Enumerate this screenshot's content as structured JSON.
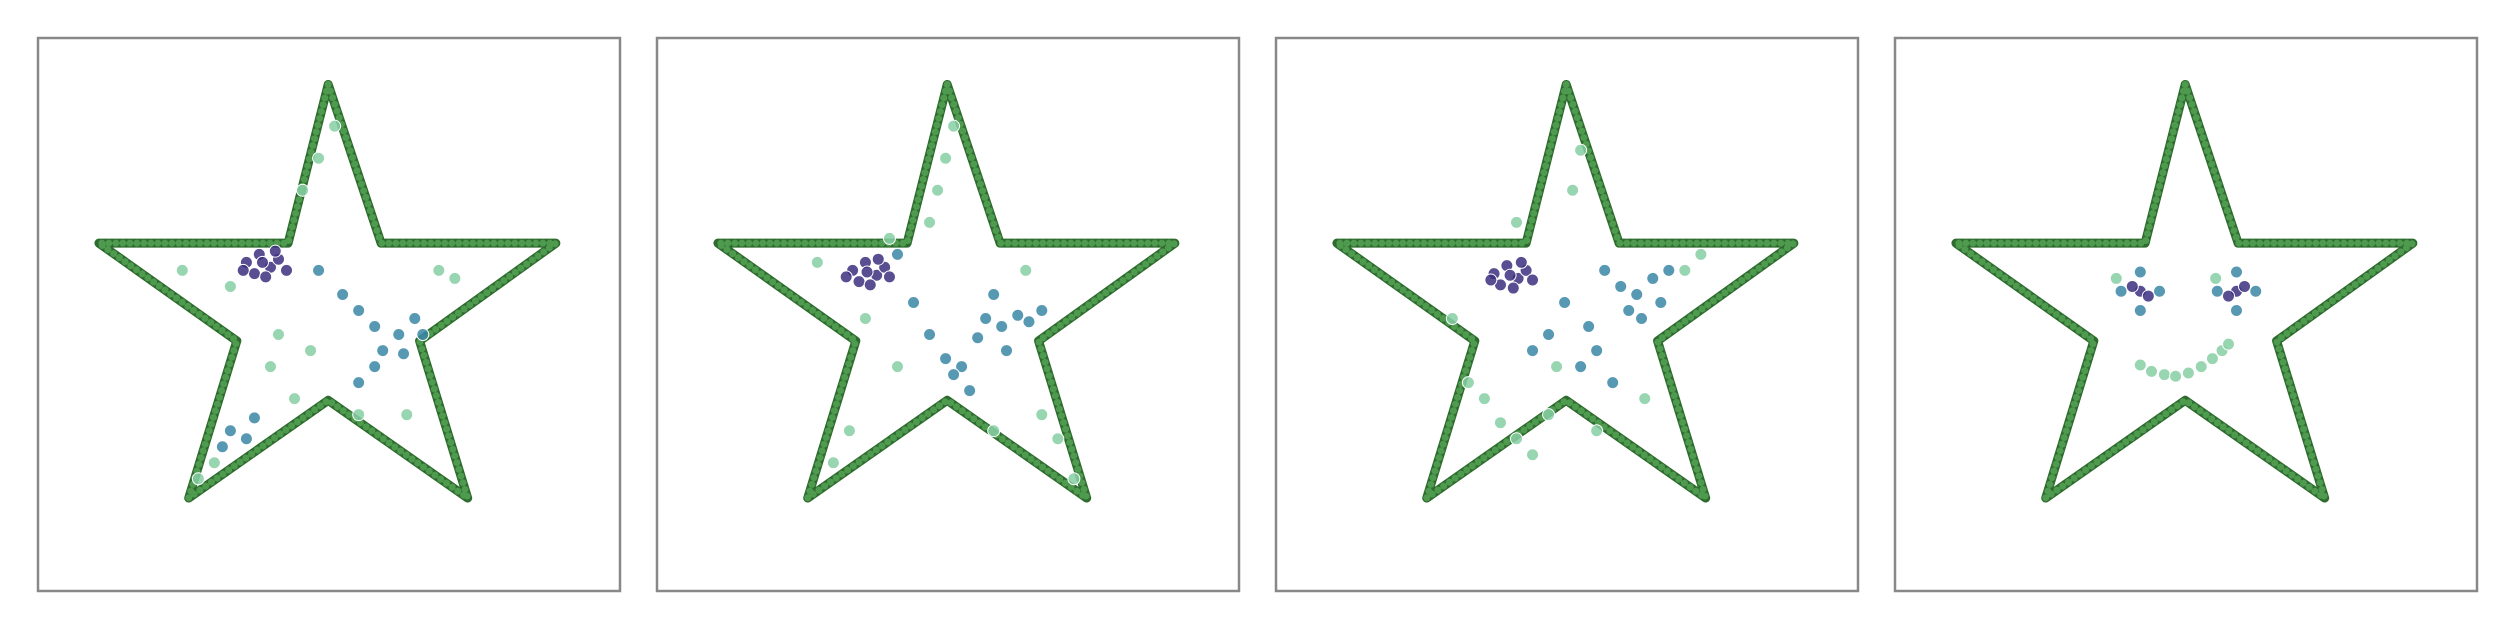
{
  "chart_data": [
    {
      "type": "scatter",
      "xlim": [
        0,
        363
      ],
      "ylim": [
        0,
        345
      ],
      "outline": {
        "color": "#4e9a4e",
        "x": [
          181,
          214,
          323,
          238,
          268,
          181,
          94,
          124,
          38,
          156
        ],
        "values": [
          316,
          217,
          217,
          156,
          58,
          119,
          58,
          156,
          217,
          217
        ]
      },
      "series": [
        {
          "color": "#3b2f7e",
          "x": [
            130,
            138,
            145,
            150,
            135,
            142,
            155,
            128,
            148,
            140
          ],
          "values": [
            205,
            210,
            202,
            207,
            198,
            196,
            200,
            200,
            212,
            205
          ]
        },
        {
          "color": "#3a86a6",
          "x": [
            210,
            225,
            235,
            215,
            200,
            240,
            228,
            190,
            175,
            120,
            130,
            115,
            135,
            200,
            210
          ],
          "values": [
            165,
            160,
            170,
            150,
            175,
            160,
            148,
            185,
            200,
            100,
            95,
            90,
            108,
            130,
            140
          ]
        },
        {
          "color": "#86cfa5",
          "x": [
            110,
            100,
            165,
            175,
            185,
            120,
            150,
            170,
            250,
            260,
            200,
            160,
            145,
            230,
            90
          ],
          "values": [
            80,
            70,
            250,
            270,
            290,
            190,
            160,
            150,
            200,
            195,
            110,
            120,
            140,
            110,
            200
          ]
        }
      ]
    },
    {
      "type": "scatter",
      "xlim": [
        0,
        363
      ],
      "ylim": [
        0,
        345
      ],
      "outline": {
        "color": "#4e9a4e",
        "x": [
          181,
          214,
          323,
          238,
          268,
          181,
          94,
          124,
          38,
          156
        ],
        "values": [
          316,
          217,
          217,
          156,
          58,
          119,
          58,
          156,
          217,
          217
        ]
      },
      "series": [
        {
          "color": "#3b2f7e",
          "x": [
            122,
            130,
            137,
            142,
            126,
            133,
            145,
            118,
            138,
            131
          ],
          "values": [
            200,
            205,
            197,
            202,
            193,
            191,
            196,
            196,
            207,
            199
          ]
        },
        {
          "color": "#3a86a6",
          "x": [
            205,
            215,
            225,
            200,
            190,
            232,
            218,
            185,
            195,
            180,
            170,
            210,
            160,
            240,
            150
          ],
          "values": [
            170,
            165,
            172,
            158,
            140,
            168,
            150,
            135,
            125,
            145,
            160,
            185,
            180,
            175,
            210
          ]
        },
        {
          "color": "#86cfa5",
          "x": [
            120,
            110,
            175,
            180,
            185,
            130,
            150,
            240,
            250,
            260,
            210,
            230,
            145,
            100,
            170
          ],
          "values": [
            100,
            80,
            250,
            270,
            290,
            170,
            140,
            110,
            95,
            70,
            100,
            200,
            220,
            205,
            230
          ]
        }
      ]
    },
    {
      "type": "scatter",
      "xlim": [
        0,
        363
      ],
      "ylim": [
        0,
        345
      ],
      "outline": {
        "color": "#4e9a4e",
        "x": [
          181,
          214,
          323,
          238,
          268,
          181,
          94,
          124,
          38,
          156
        ],
        "values": [
          316,
          217,
          217,
          156,
          58,
          119,
          58,
          156,
          217,
          217
        ]
      },
      "series": [
        {
          "color": "#3b2f7e",
          "x": [
            136,
            144,
            151,
            156,
            140,
            148,
            160,
            134,
            153,
            146
          ],
          "values": [
            198,
            203,
            195,
            200,
            191,
            189,
            194,
            194,
            205,
            197
          ]
        },
        {
          "color": "#3a86a6",
          "x": [
            215,
            225,
            235,
            220,
            205,
            240,
            228,
            195,
            180,
            170,
            160,
            200,
            190,
            245,
            210
          ],
          "values": [
            190,
            185,
            195,
            175,
            200,
            180,
            170,
            165,
            180,
            160,
            150,
            150,
            140,
            200,
            130
          ]
        },
        {
          "color": "#86cfa5",
          "x": [
            130,
            140,
            150,
            120,
            160,
            170,
            185,
            190,
            255,
            265,
            110,
            230,
            200,
            150,
            175
          ],
          "values": [
            120,
            105,
            95,
            130,
            85,
            110,
            250,
            275,
            200,
            210,
            170,
            120,
            100,
            230,
            140
          ]
        }
      ]
    },
    {
      "type": "scatter",
      "xlim": [
        0,
        363
      ],
      "ylim": [
        0,
        345
      ],
      "outline": {
        "color": "#4e9a4e",
        "x": [
          181,
          214,
          323,
          238,
          268,
          181,
          94,
          124,
          38,
          156
        ],
        "values": [
          316,
          217,
          217,
          156,
          58,
          119,
          58,
          156,
          217,
          217
        ]
      },
      "series": [
        {
          "color": "#3b2f7e",
          "x": [
            153,
            148,
            158,
            213,
            218,
            208
          ],
          "values": [
            187,
            190,
            184,
            187,
            190,
            184
          ]
        },
        {
          "color": "#3a86a6",
          "x": [
            141,
            153,
            165,
            153,
            201,
            213,
            225,
            213
          ],
          "values": [
            187,
            199,
            187,
            175,
            187,
            199,
            187,
            175
          ]
        },
        {
          "color": "#86cfa5",
          "x": [
            153,
            160,
            168,
            175,
            183,
            191,
            198,
            204,
            208,
            138,
            200
          ],
          "values": [
            141,
            137,
            135,
            134,
            136,
            140,
            145,
            150,
            154,
            195,
            195
          ]
        }
      ]
    }
  ]
}
